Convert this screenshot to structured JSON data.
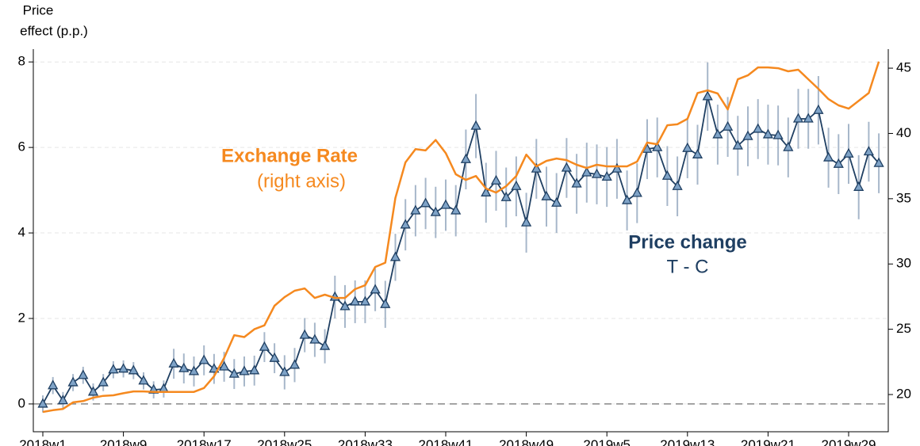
{
  "chart_data": {
    "type": "line",
    "ylabel_lines": [
      "Price",
      "effect (p.p.)"
    ],
    "categories": [
      "2018w1",
      null,
      null,
      null,
      null,
      null,
      null,
      null,
      "2018w9",
      null,
      null,
      null,
      null,
      null,
      null,
      null,
      "2018w17",
      null,
      null,
      null,
      null,
      null,
      null,
      null,
      "2018w25",
      null,
      null,
      null,
      null,
      null,
      null,
      null,
      "2018w33",
      null,
      null,
      null,
      null,
      null,
      null,
      null,
      "2018w41",
      null,
      null,
      null,
      null,
      null,
      null,
      null,
      "2018w49",
      null,
      null,
      null,
      null,
      null,
      null,
      null,
      "2019w5",
      null,
      null,
      null,
      null,
      null,
      null,
      null,
      "2019w13",
      null,
      null,
      null,
      null,
      null,
      null,
      null,
      "2019w21",
      null,
      null,
      null,
      null,
      null,
      null,
      null,
      "2019w29",
      null,
      null,
      null
    ],
    "series": [
      {
        "color": "#1f3f62",
        "marker_color": "#7fa3c7",
        "error_color": "#a7b7ca",
        "values": [
          0.0,
          0.43,
          0.08,
          0.5,
          0.67,
          0.28,
          0.5,
          0.8,
          0.82,
          0.78,
          0.54,
          0.33,
          0.35,
          0.94,
          0.83,
          0.76,
          1.02,
          0.82,
          0.87,
          0.7,
          0.76,
          0.78,
          1.33,
          1.07,
          0.74,
          0.91,
          1.61,
          1.5,
          1.35,
          2.5,
          2.28,
          2.39,
          2.39,
          2.67,
          2.33,
          3.43,
          4.19,
          4.52,
          4.69,
          4.48,
          4.65,
          4.52,
          5.72,
          6.5,
          4.94,
          5.22,
          4.83,
          5.09,
          4.24,
          5.5,
          4.85,
          4.7,
          5.52,
          5.15,
          5.41,
          5.37,
          5.31,
          5.5,
          4.76,
          4.93,
          5.96,
          6.0,
          5.33,
          5.09,
          5.98,
          5.83,
          7.19,
          6.3,
          6.48,
          6.04,
          6.26,
          6.43,
          6.3,
          6.28,
          6.0,
          6.67,
          6.67,
          6.87,
          5.76,
          5.61,
          5.85,
          5.07,
          5.9,
          5.63
        ],
        "errors": [
          0.2,
          0.2,
          0.2,
          0.2,
          0.2,
          0.2,
          0.2,
          0.2,
          0.2,
          0.2,
          0.2,
          0.2,
          0.2,
          0.35,
          0.35,
          0.35,
          0.35,
          0.35,
          0.35,
          0.35,
          0.35,
          0.35,
          0.35,
          0.35,
          0.4,
          0.4,
          0.4,
          0.4,
          0.4,
          0.5,
          0.5,
          0.5,
          0.5,
          0.5,
          0.55,
          0.55,
          0.6,
          0.6,
          0.6,
          0.6,
          0.6,
          0.6,
          0.7,
          0.75,
          0.7,
          0.7,
          0.7,
          0.7,
          0.7,
          0.7,
          0.7,
          0.7,
          0.7,
          0.7,
          0.7,
          0.7,
          0.7,
          0.7,
          0.7,
          0.7,
          0.7,
          0.7,
          0.7,
          0.7,
          0.7,
          0.7,
          0.8,
          0.7,
          0.7,
          0.7,
          0.7,
          0.7,
          0.7,
          0.7,
          0.7,
          0.7,
          0.7,
          0.8,
          0.7,
          0.7,
          0.7,
          0.75,
          0.7,
          0.7
        ]
      },
      {
        "color": "#f5891f",
        "axis": "y2",
        "values": [
          18.67,
          18.8,
          18.9,
          19.4,
          19.5,
          19.76,
          19.9,
          19.94,
          20.1,
          20.24,
          20.24,
          20.2,
          20.2,
          20.2,
          20.2,
          20.2,
          20.5,
          21.4,
          22.8,
          24.55,
          24.4,
          25.0,
          25.3,
          26.8,
          27.46,
          27.95,
          28.13,
          27.4,
          27.65,
          27.4,
          27.4,
          28.07,
          28.37,
          29.77,
          30.1,
          35.05,
          37.78,
          38.8,
          38.7,
          39.5,
          38.5,
          36.87,
          36.44,
          36.74,
          35.78,
          35.47,
          35.96,
          36.74,
          38.38,
          37.48,
          37.9,
          38.08,
          37.96,
          37.6,
          37.35,
          37.6,
          37.48,
          37.48,
          37.48,
          37.84,
          39.3,
          39.17,
          40.63,
          40.7,
          41.12,
          43.1,
          43.3,
          43.06,
          41.84,
          44.15,
          44.45,
          45.06,
          45.06,
          45.0,
          44.76,
          44.88,
          44.15,
          43.42,
          42.63,
          42.15,
          41.9,
          42.5,
          43.1,
          45.5
        ]
      }
    ],
    "ylim": [
      -0.65,
      8.3
    ],
    "yticks": [
      0,
      2,
      4,
      6,
      8
    ],
    "y2lim": [
      17.15,
      46.46
    ],
    "y2ticks": [
      20,
      25,
      30,
      35,
      40,
      45
    ],
    "grid": true,
    "hline": 0,
    "annotations": [
      {
        "text": "Exchange Rate",
        "color": "#f5891f",
        "bold": true
      },
      {
        "text": "(right axis)",
        "color": "#f5891f",
        "bold": false
      },
      {
        "text": "Price change",
        "color": "#1f3f62",
        "bold": true
      },
      {
        "text": "T - C",
        "color": "#1f3f62",
        "bold": false
      }
    ]
  }
}
